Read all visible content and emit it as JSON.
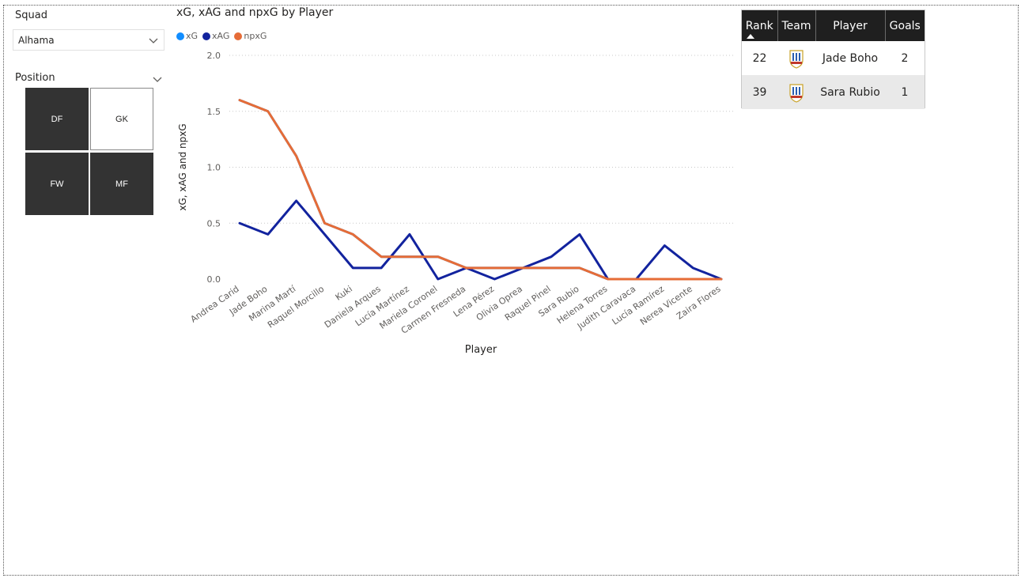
{
  "squad_slicer": {
    "label": "Squad",
    "selected": "Alhama"
  },
  "position_slicer": {
    "label": "Position",
    "tiles": [
      {
        "label": "DF",
        "selected": true
      },
      {
        "label": "GK",
        "selected": false
      },
      {
        "label": "FW",
        "selected": true
      },
      {
        "label": "MF",
        "selected": true
      }
    ]
  },
  "chart": {
    "title": "xG, xAG and npxG by Player",
    "legend": [
      {
        "name": "xG",
        "color": "#118DFF"
      },
      {
        "name": "xAG",
        "color": "#12239E"
      },
      {
        "name": "npxG",
        "color": "#E66C37"
      }
    ]
  },
  "chart_data": {
    "type": "line",
    "title": "xG, xAG and npxG by Player",
    "xlabel": "Player",
    "ylabel": "xG, xAG and npxG",
    "ylim": [
      0,
      2.0
    ],
    "yticks": [
      "0.0",
      "0.5",
      "1.0",
      "1.5",
      "2.0"
    ],
    "grid": true,
    "legend_position": "top-left",
    "categories": [
      "Andrea Carid",
      "Jade Boho",
      "Marina Martí",
      "Raquel Morcillo",
      "Kuki",
      "Daniela Arques",
      "Lucía Martínez",
      "Mariela Coronel",
      "Carmen Fresneda",
      "Lena Pérez",
      "Olivia Oprea",
      "Raquel Pinel",
      "Sara Rubio",
      "Helena Torres",
      "Judith Caravaca",
      "Lucía Ramírez",
      "Nerea Vicente",
      "Zaira Flores"
    ],
    "series": [
      {
        "name": "xG",
        "color": "#118DFF",
        "values": [
          1.6,
          1.5,
          1.1,
          0.5,
          0.4,
          0.2,
          0.2,
          0.2,
          0.1,
          0.1,
          0.1,
          0.1,
          0.1,
          0.0,
          0.0,
          0.0,
          0.0,
          0.0
        ]
      },
      {
        "name": "xAG",
        "color": "#12239E",
        "values": [
          0.5,
          0.4,
          0.7,
          0.4,
          0.1,
          0.1,
          0.4,
          0.0,
          0.1,
          0.0,
          0.1,
          0.2,
          0.4,
          0.0,
          0.0,
          0.3,
          0.1,
          0.0
        ]
      },
      {
        "name": "npxG",
        "color": "#E66C37",
        "values": [
          1.6,
          1.5,
          1.1,
          0.5,
          0.4,
          0.2,
          0.2,
          0.2,
          0.1,
          0.1,
          0.1,
          0.1,
          0.1,
          0.0,
          0.0,
          0.0,
          0.0,
          0.0
        ]
      }
    ]
  },
  "table": {
    "headers": [
      "Rank",
      "Team",
      "Player",
      "Goals"
    ],
    "rows": [
      {
        "rank": "22",
        "team_icon": "alhama-crest-icon",
        "player": "Jade Boho",
        "goals": "2"
      },
      {
        "rank": "39",
        "team_icon": "alhama-crest-icon",
        "player": "Sara Rubio",
        "goals": "1"
      }
    ]
  }
}
